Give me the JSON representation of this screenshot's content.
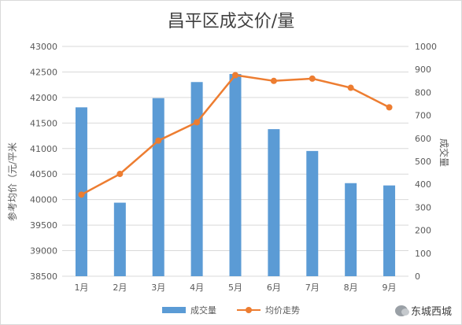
{
  "chart_data": {
    "type": "bar",
    "title": "昌平区成交价/量",
    "categories": [
      "1月",
      "2月",
      "3月",
      "4月",
      "5月",
      "6月",
      "7月",
      "8月",
      "9月"
    ],
    "series": [
      {
        "name": "成交量",
        "type": "bar",
        "axis": "right",
        "values": [
          735,
          320,
          775,
          845,
          880,
          640,
          545,
          405,
          395
        ]
      },
      {
        "name": "均价走势",
        "type": "line",
        "axis": "right",
        "values": [
          355,
          445,
          590,
          670,
          875,
          850,
          860,
          820,
          735
        ]
      }
    ],
    "ylabel_left": "参考均价（元/平米",
    "ylabel_right": "成交量",
    "ylim_left": [
      38500,
      43000
    ],
    "yticks_left": [
      "43000",
      "42500",
      "42000",
      "41500",
      "41000",
      "40500",
      "40000",
      "39500",
      "39000",
      "38500"
    ],
    "ylim_right": [
      0,
      1000
    ],
    "yticks_right": [
      "1000",
      "900",
      "800",
      "700",
      "600",
      "500",
      "400",
      "300",
      "200",
      "100",
      "0"
    ],
    "grid": true,
    "legend": "bottom",
    "colors": {
      "bar": "#5b9bd5",
      "line": "#ed7d31"
    }
  },
  "watermark": {
    "text": "东城西城",
    "icon": "wechat-icon"
  }
}
